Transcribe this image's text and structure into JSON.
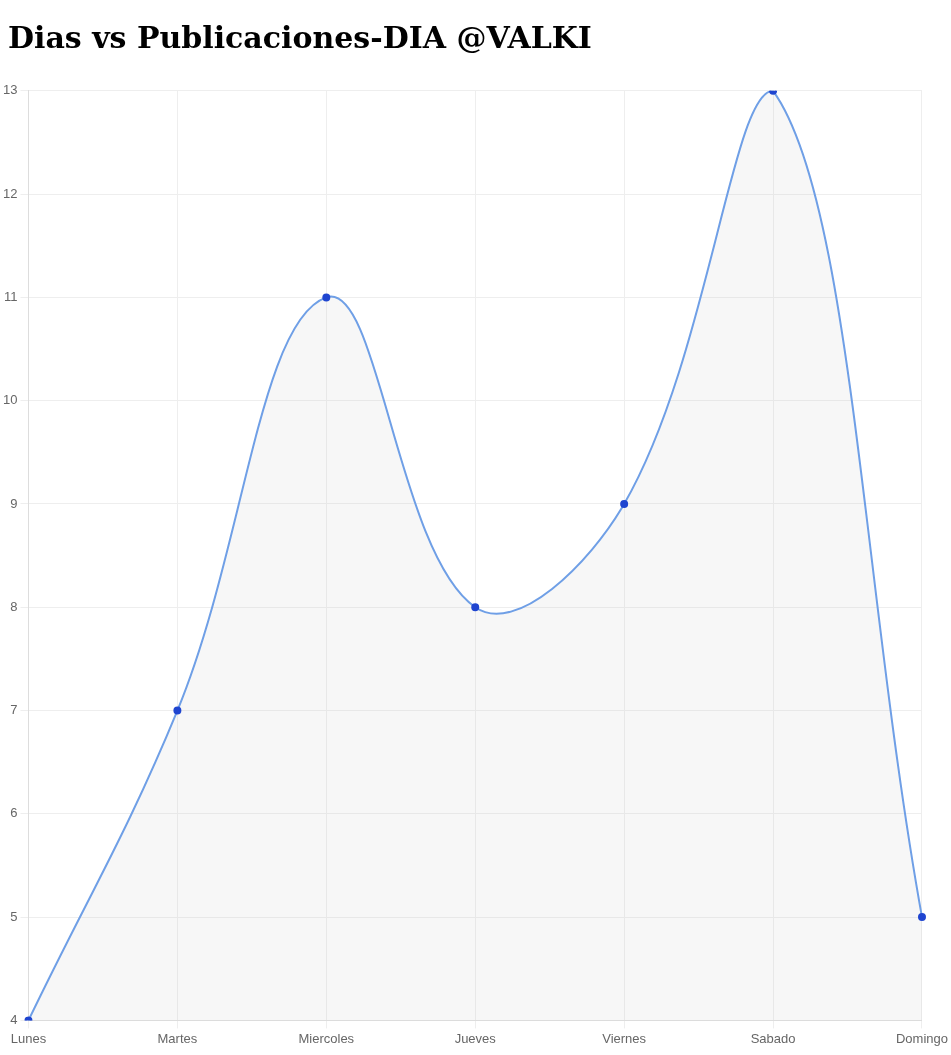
{
  "chart_data": {
    "type": "area",
    "title": "Dias vs Publicaciones-DIA @VALKI",
    "categories": [
      "Lunes",
      "Martes",
      "Miercoles",
      "Jueves",
      "Viernes",
      "Sabado",
      "Domingo"
    ],
    "series": [
      {
        "color": "#6f9fe6",
        "values": [
          4,
          7,
          11,
          8,
          9,
          13,
          5
        ]
      }
    ],
    "ylim": [
      4,
      13
    ],
    "yticks": [
      4,
      5,
      6,
      7,
      8,
      9,
      10,
      11,
      12,
      13
    ],
    "grid": true,
    "legend": false,
    "marker": "circle",
    "line_style": "solid"
  }
}
